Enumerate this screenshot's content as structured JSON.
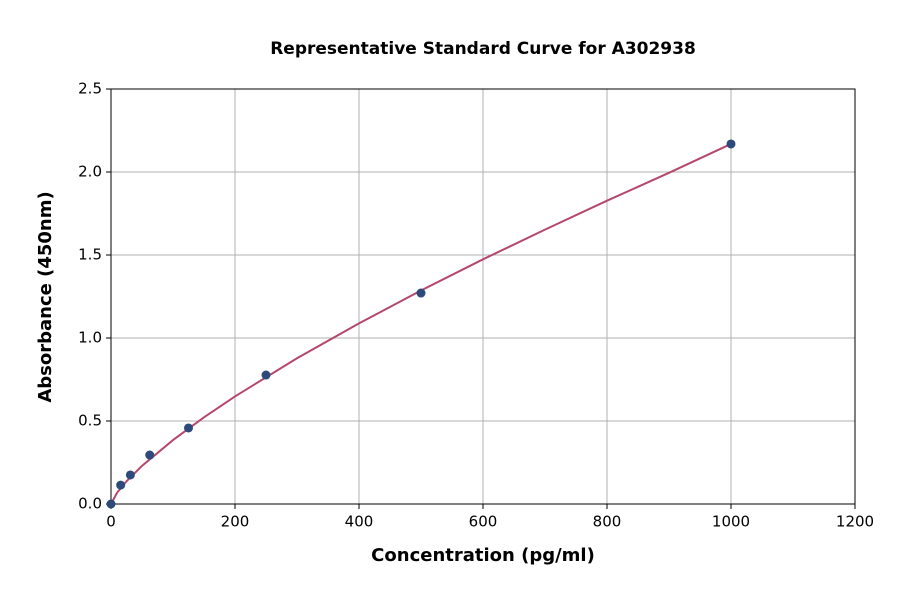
{
  "chart_data": {
    "type": "scatter",
    "title": "Representative Standard Curve for A302938",
    "xlabel": "Concentration (pg/ml)",
    "ylabel": "Absorbance (450nm)",
    "xlim": [
      0,
      1200
    ],
    "xticks": [
      0,
      200,
      400,
      600,
      800,
      1000,
      1200
    ],
    "ylim": [
      0,
      2.5
    ],
    "yticks": [
      {
        "value": 0,
        "label": "0.0"
      },
      0.5,
      {
        "value": 1,
        "label": "1.0"
      },
      1.5,
      {
        "value": 2,
        "label": "2.0"
      },
      2.5
    ],
    "grid": true,
    "series": [
      {
        "type": "scatter",
        "color": "#2e4a7a",
        "x": [
          0,
          15.6,
          31.25,
          62.5,
          125,
          250,
          500,
          1000
        ],
        "values": [
          0.0,
          0.114,
          0.175,
          0.295,
          0.458,
          0.777,
          1.271,
          2.169
        ]
      },
      {
        "type": "line",
        "color": "#b5476b",
        "x": [
          0,
          10,
          25,
          50,
          100,
          150,
          200,
          300,
          400,
          500,
          600,
          700,
          800,
          900,
          1000
        ],
        "values": [
          0.0,
          0.069,
          0.137,
          0.23,
          0.385,
          0.522,
          0.648,
          0.878,
          1.088,
          1.286,
          1.474,
          1.653,
          1.827,
          1.995,
          2.169
        ]
      }
    ]
  }
}
